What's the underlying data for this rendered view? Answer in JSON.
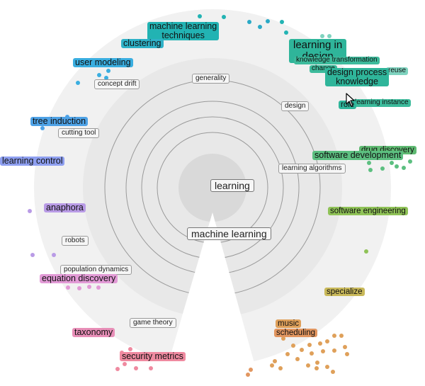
{
  "center": {
    "label": "learning"
  },
  "inner_labels": [
    {
      "label": "machine learning"
    },
    {
      "label": "generality"
    },
    {
      "label": "design"
    },
    {
      "label": "learning algorithms"
    },
    {
      "label": "concept drift"
    },
    {
      "label": "cutting tool"
    },
    {
      "label": "robots"
    },
    {
      "label": "population dynamics"
    },
    {
      "label": "game theory"
    }
  ],
  "clusters": [
    {
      "label": "machine learning techniques",
      "lines": [
        "machine learning",
        "techniques"
      ],
      "color": "#22b3b3"
    },
    {
      "label": "clustering",
      "lines": [
        "clustering"
      ],
      "color": "#2fb2c8"
    },
    {
      "label": "user modeling",
      "lines": [
        "user modeling"
      ],
      "color": "#3aaee0"
    },
    {
      "label": "tree induction",
      "lines": [
        "tree induction"
      ],
      "color": "#4ea2e6"
    },
    {
      "label": "learning control",
      "lines": [
        "learning control"
      ],
      "color": "#8e9ff0"
    },
    {
      "label": "anaphora",
      "lines": [
        "anaphora"
      ],
      "color": "#b99be6"
    },
    {
      "label": "equation discovery",
      "lines": [
        "equation discovery"
      ],
      "color": "#e29ad6"
    },
    {
      "label": "taxonomy",
      "lines": [
        "taxonomy"
      ],
      "color": "#e88fb8"
    },
    {
      "label": "security metrics",
      "lines": [
        "security metrics"
      ],
      "color": "#ef8aa0"
    },
    {
      "label": "learning in design",
      "lines": [
        "learning in",
        "design"
      ],
      "color": "#2fb59a"
    },
    {
      "label": "knowledge transformation",
      "lines": [
        "knowledge transformation"
      ],
      "color": "#3dbb9c"
    },
    {
      "label": "change",
      "lines": [
        "change"
      ],
      "color": "#3dbb9c"
    },
    {
      "label": "reuse",
      "lines": [
        "reuse"
      ],
      "color": "#7fd3bf"
    },
    {
      "label": "design process knowledge",
      "lines": [
        "design process",
        "knowledge"
      ],
      "color": "#2fb59a"
    },
    {
      "label": "learning instance",
      "lines": [
        "learning instance"
      ],
      "color": "#3dbb9c"
    },
    {
      "label": "role",
      "lines": [
        "role"
      ],
      "color": "#2fb59a"
    },
    {
      "label": "drug discovery",
      "lines": [
        "drug discovery"
      ],
      "color": "#5fba72"
    },
    {
      "label": "software development",
      "lines": [
        "software development"
      ],
      "color": "#5cbf80"
    },
    {
      "label": "software engineering",
      "lines": [
        "software engineering"
      ],
      "color": "#8fc257"
    },
    {
      "label": "specialize",
      "lines": [
        "specialize"
      ],
      "color": "#c9b95a"
    },
    {
      "label": "music",
      "lines": [
        "music"
      ],
      "color": "#dfa05a"
    },
    {
      "label": "scheduling",
      "lines": [
        "scheduling"
      ],
      "color": "#e29660"
    }
  ],
  "colors": {
    "outer_disc": "#f1f1f1",
    "inner_disc": "#e6e6e6",
    "core": "#d9d9d9",
    "rings": "#9a9a9a",
    "wedge": "#ffffff"
  }
}
